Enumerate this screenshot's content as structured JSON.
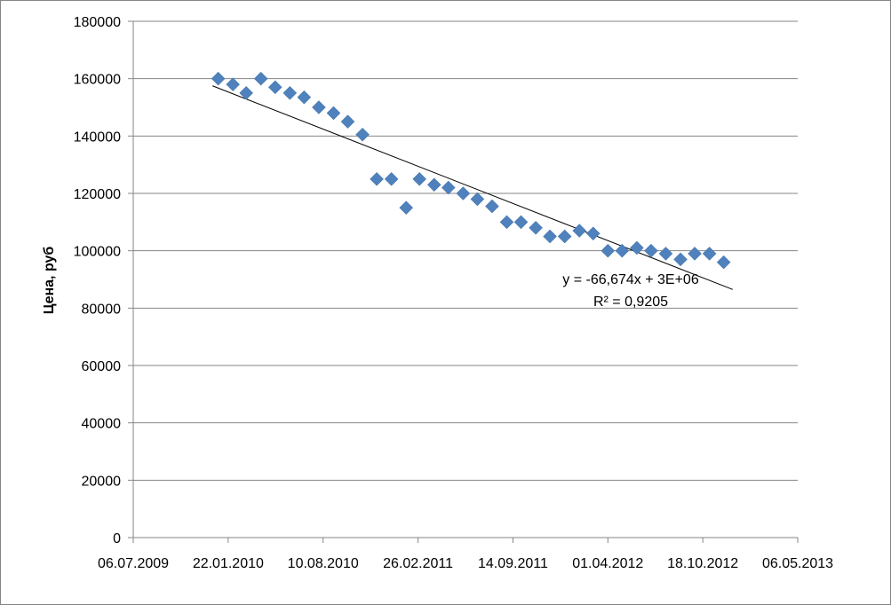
{
  "chart_data": {
    "type": "scatter",
    "ylabel": "Цена, руб",
    "xlabel": "",
    "title": "",
    "ylim": [
      0,
      180000
    ],
    "xlim": [
      "2009-07-06",
      "2013-05-06"
    ],
    "y_ticks": [
      "0",
      "20000",
      "40000",
      "60000",
      "80000",
      "100000",
      "120000",
      "140000",
      "160000",
      "180000"
    ],
    "x_ticks": [
      {
        "date": "2009-07-06",
        "label": "06.07.2009"
      },
      {
        "date": "2010-01-22",
        "label": "22.01.2010"
      },
      {
        "date": "2010-08-10",
        "label": "10.08.2010"
      },
      {
        "date": "2011-02-26",
        "label": "26.02.2011"
      },
      {
        "date": "2011-09-14",
        "label": "14.09.2011"
      },
      {
        "date": "2012-04-01",
        "label": "01.04.2012"
      },
      {
        "date": "2012-10-18",
        "label": "18.10.2012"
      },
      {
        "date": "2013-05-06",
        "label": "06.05.2013"
      }
    ],
    "grid": "horizontal",
    "marker_color": "#4F81BD",
    "series": [
      {
        "points": [
          {
            "x": "2010-01-01",
            "y": 160000
          },
          {
            "x": "2010-02-01",
            "y": 158000
          },
          {
            "x": "2010-03-01",
            "y": 155000
          },
          {
            "x": "2010-04-01",
            "y": 160000
          },
          {
            "x": "2010-05-01",
            "y": 157000
          },
          {
            "x": "2010-06-01",
            "y": 155000
          },
          {
            "x": "2010-07-01",
            "y": 153500
          },
          {
            "x": "2010-08-01",
            "y": 150000
          },
          {
            "x": "2010-09-01",
            "y": 148000
          },
          {
            "x": "2010-10-01",
            "y": 145000
          },
          {
            "x": "2010-11-01",
            "y": 140500
          },
          {
            "x": "2010-12-01",
            "y": 125000
          },
          {
            "x": "2011-01-01",
            "y": 125000
          },
          {
            "x": "2011-02-01",
            "y": 115000
          },
          {
            "x": "2011-03-01",
            "y": 125000
          },
          {
            "x": "2011-04-01",
            "y": 123000
          },
          {
            "x": "2011-05-01",
            "y": 122000
          },
          {
            "x": "2011-06-01",
            "y": 120000
          },
          {
            "x": "2011-07-01",
            "y": 118000
          },
          {
            "x": "2011-08-01",
            "y": 115500
          },
          {
            "x": "2011-09-01",
            "y": 110000
          },
          {
            "x": "2011-10-01",
            "y": 110000
          },
          {
            "x": "2011-11-01",
            "y": 108000
          },
          {
            "x": "2011-12-01",
            "y": 105000
          },
          {
            "x": "2012-01-01",
            "y": 105000
          },
          {
            "x": "2012-02-01",
            "y": 107000
          },
          {
            "x": "2012-03-01",
            "y": 106000
          },
          {
            "x": "2012-04-01",
            "y": 100000
          },
          {
            "x": "2012-05-01",
            "y": 100000
          },
          {
            "x": "2012-06-01",
            "y": 101000
          },
          {
            "x": "2012-07-01",
            "y": 100000
          },
          {
            "x": "2012-08-01",
            "y": 99000
          },
          {
            "x": "2012-09-01",
            "y": 97000
          },
          {
            "x": "2012-10-01",
            "y": 99000
          },
          {
            "x": "2012-11-01",
            "y": 99000
          },
          {
            "x": "2012-12-01",
            "y": 96000
          }
        ]
      }
    ],
    "trendline": {
      "type": "linear",
      "start": {
        "x": "2009-12-20",
        "y": 157500
      },
      "end": {
        "x": "2012-12-20",
        "y": 86500
      },
      "equation": "y = -66,674x + 3E+06",
      "r_squared": "R² = 0,9205"
    }
  }
}
